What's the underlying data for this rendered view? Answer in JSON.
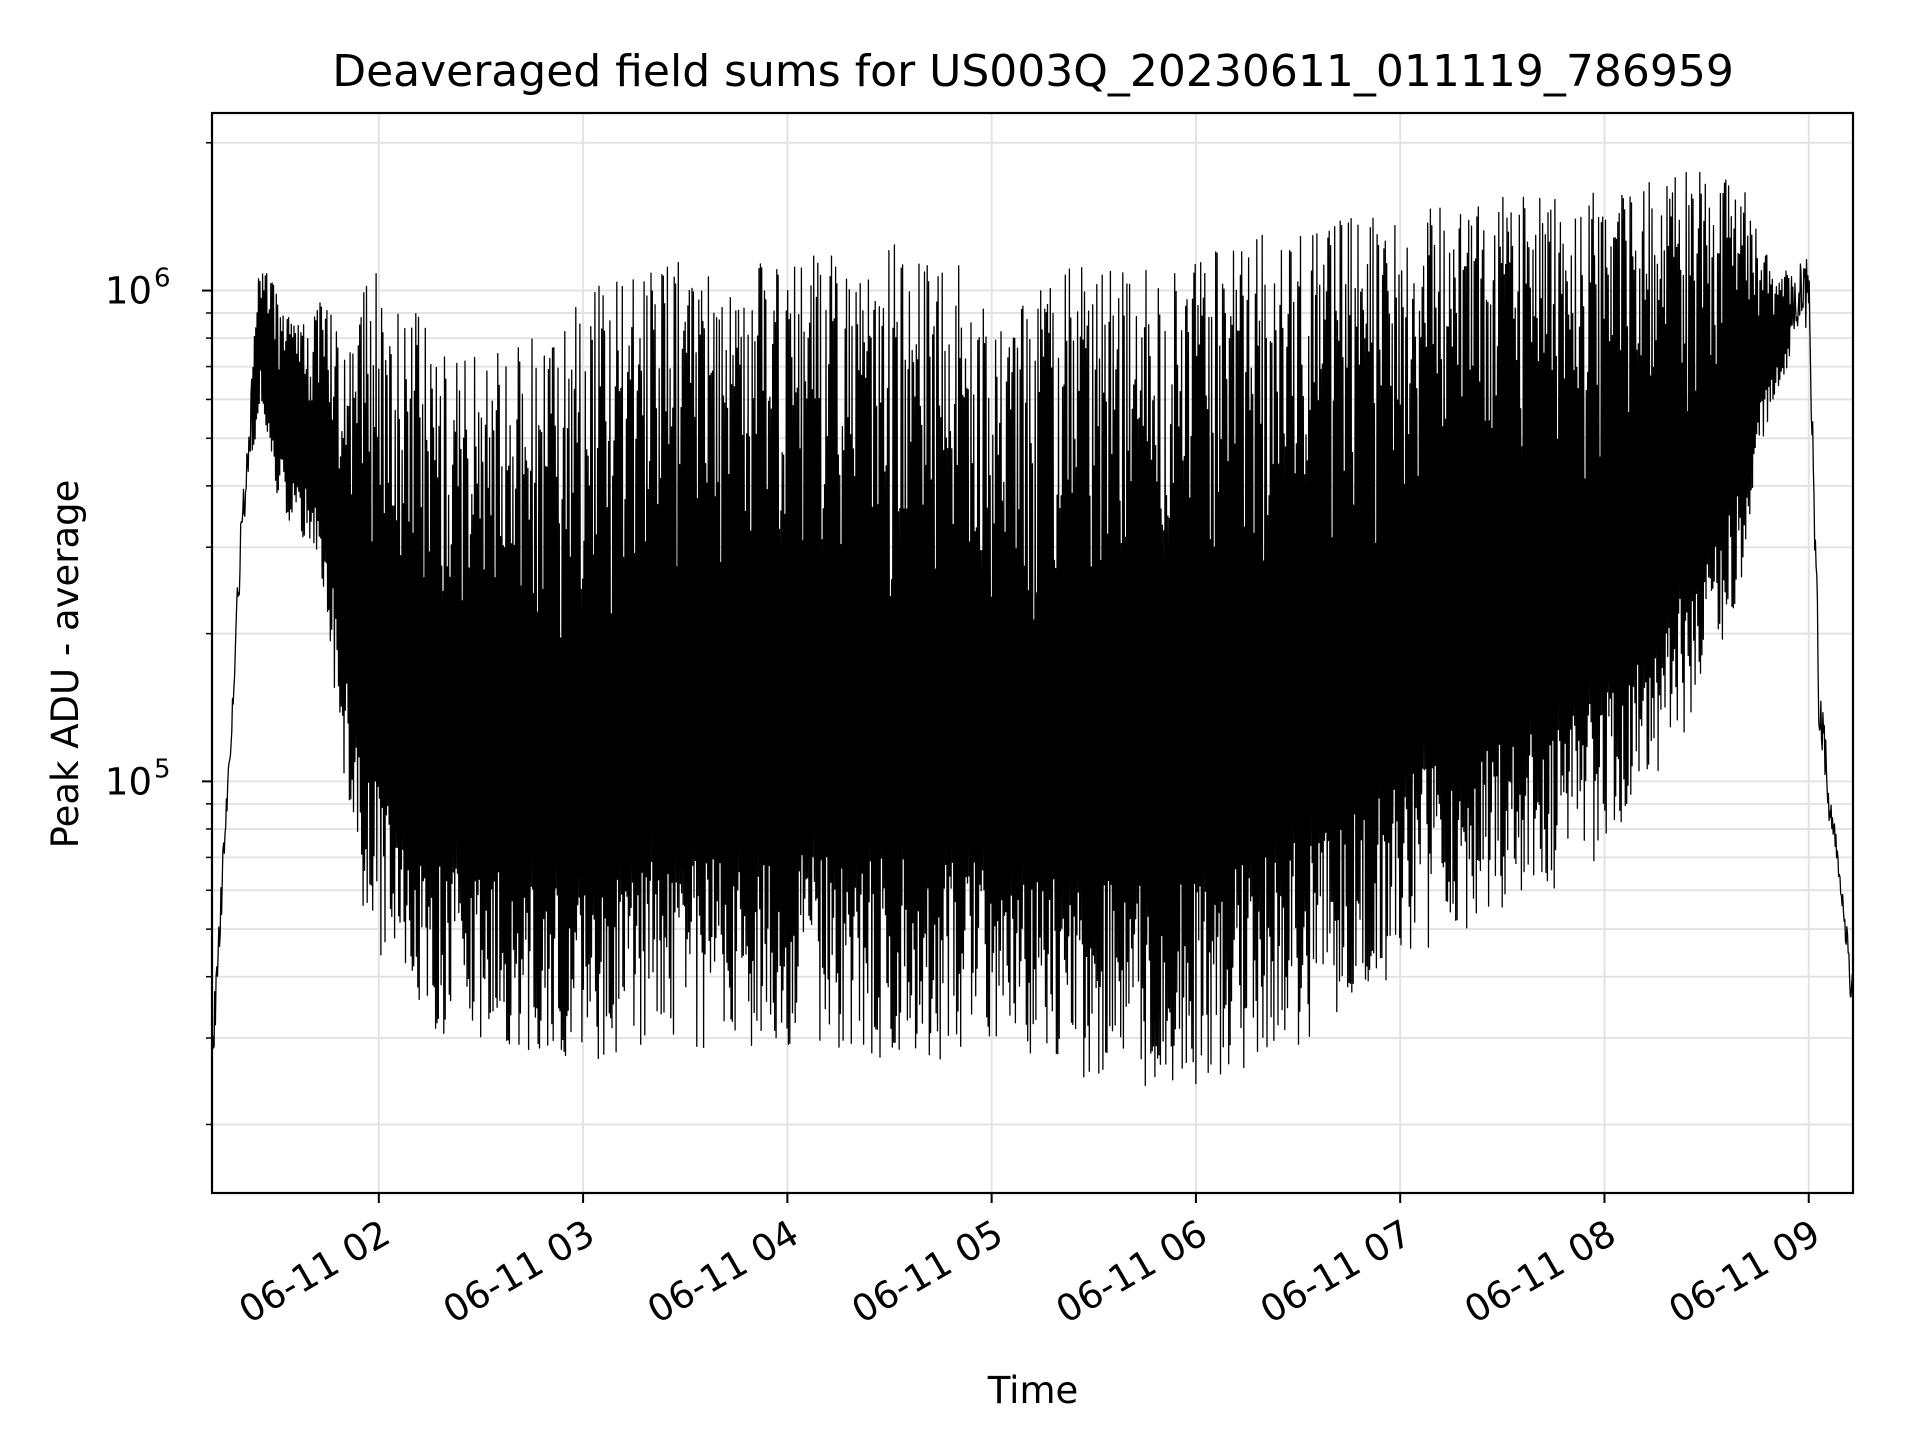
{
  "chart_data": {
    "type": "line",
    "title": "Deaveraged field sums for US003Q_20230611_011119_786959",
    "xlabel": "Time",
    "ylabel": "Peak ADU - average",
    "yscale": "log",
    "xlim": [
      "2023-06-11 01:11",
      "2023-06-11 09:13"
    ],
    "ylim": [
      14500,
      2300000
    ],
    "grid": true,
    "legend": "none",
    "line_color": "#000000",
    "x_ticks": [
      {
        "time": "2023-06-11 02:00",
        "label": "06-11 02"
      },
      {
        "time": "2023-06-11 03:00",
        "label": "06-11 03"
      },
      {
        "time": "2023-06-11 04:00",
        "label": "06-11 04"
      },
      {
        "time": "2023-06-11 05:00",
        "label": "06-11 05"
      },
      {
        "time": "2023-06-11 06:00",
        "label": "06-11 06"
      },
      {
        "time": "2023-06-11 07:00",
        "label": "06-11 07"
      },
      {
        "time": "2023-06-11 08:00",
        "label": "06-11 08"
      },
      {
        "time": "2023-06-11 09:00",
        "label": "06-11 09"
      }
    ],
    "y_ticks": [
      {
        "value": 100000,
        "base": "10",
        "exp": "5"
      },
      {
        "value": 1000000,
        "base": "10",
        "exp": "6"
      }
    ],
    "series": [
      {
        "envelope": true,
        "x": [
          "2023-06-11 01:11",
          "2023-06-11 01:15",
          "2023-06-11 01:20",
          "2023-06-11 01:25",
          "2023-06-11 01:30",
          "2023-06-11 01:35",
          "2023-06-11 01:40",
          "2023-06-11 01:45",
          "2023-06-11 01:50",
          "2023-06-11 01:55",
          "2023-06-11 02:00",
          "2023-06-11 02:05",
          "2023-06-11 02:10",
          "2023-06-11 02:15",
          "2023-06-11 02:20",
          "2023-06-11 02:30",
          "2023-06-11 02:40",
          "2023-06-11 02:50",
          "2023-06-11 03:00",
          "2023-06-11 03:15",
          "2023-06-11 03:30",
          "2023-06-11 03:45",
          "2023-06-11 04:00",
          "2023-06-11 04:15",
          "2023-06-11 04:30",
          "2023-06-11 04:45",
          "2023-06-11 05:00",
          "2023-06-11 05:10",
          "2023-06-11 05:20",
          "2023-06-11 05:30",
          "2023-06-11 05:40",
          "2023-06-11 05:50",
          "2023-06-11 06:00",
          "2023-06-11 06:10",
          "2023-06-11 06:20",
          "2023-06-11 06:30",
          "2023-06-11 06:40",
          "2023-06-11 06:50",
          "2023-06-11 07:00",
          "2023-06-11 07:15",
          "2023-06-11 07:30",
          "2023-06-11 07:45",
          "2023-06-11 08:00",
          "2023-06-11 08:15",
          "2023-06-11 08:30",
          "2023-06-11 08:40",
          "2023-06-11 08:45",
          "2023-06-11 08:50",
          "2023-06-11 08:55",
          "2023-06-11 09:00",
          "2023-06-11 09:03",
          "2023-06-11 09:06",
          "2023-06-11 09:09",
          "2023-06-11 09:13"
        ],
        "upper": [
          30000,
          90000,
          400000,
          1150000,
          1000000,
          850000,
          900000,
          1000000,
          800000,
          1000000,
          1100000,
          950000,
          950000,
          850000,
          800000,
          800000,
          820000,
          800000,
          1000000,
          1100000,
          1150000,
          1100000,
          1200000,
          1250000,
          1250000,
          1300000,
          900000,
          950000,
          1100000,
          1150000,
          1100000,
          1100000,
          1150000,
          1250000,
          1300000,
          1350000,
          1400000,
          1450000,
          1450000,
          1500000,
          1550000,
          1600000,
          1650000,
          1700000,
          1800000,
          1700000,
          1300000,
          1100000,
          1100000,
          1200000,
          180000,
          100000,
          70000,
          40000
        ],
        "lower": [
          20000,
          70000,
          300000,
          600000,
          380000,
          320000,
          300000,
          200000,
          100000,
          55000,
          45000,
          38000,
          32000,
          30000,
          30000,
          29000,
          28000,
          28000,
          27000,
          27000,
          28000,
          29000,
          28000,
          27000,
          27000,
          27000,
          29000,
          28000,
          25000,
          25000,
          24000,
          23000,
          24000,
          25000,
          27000,
          29000,
          32000,
          36000,
          42000,
          48000,
          55000,
          60000,
          70000,
          100000,
          150000,
          250000,
          450000,
          600000,
          700000,
          800000,
          120000,
          80000,
          60000,
          30000
        ]
      }
    ]
  }
}
